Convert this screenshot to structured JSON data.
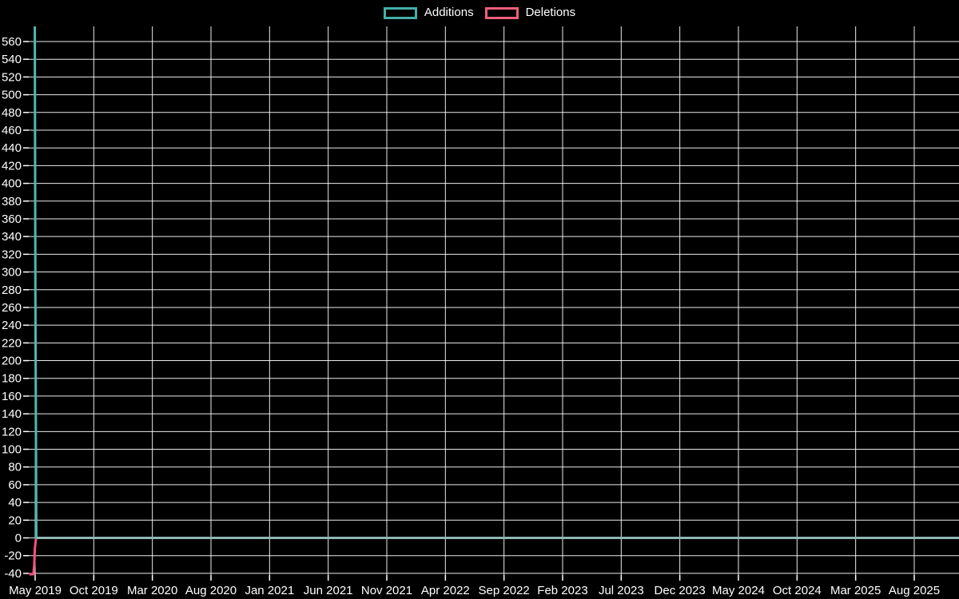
{
  "page": {
    "background_color": "#000000",
    "text_color": "#ffffff",
    "gridline_color": "#ffffff"
  },
  "legend": {
    "items": [
      {
        "label": "Additions",
        "color": "#45AFA7"
      },
      {
        "label": "Deletions",
        "color": "#F25E7C"
      }
    ]
  },
  "chart_data": {
    "type": "line",
    "title": "",
    "xlabel": "",
    "ylabel": "",
    "grid": true,
    "legend_position": "top-center",
    "x_tick_labels": [
      "May 2019",
      "Oct 2019",
      "Mar 2020",
      "Aug 2020",
      "Jan 2021",
      "Jun 2021",
      "Nov 2021",
      "Apr 2022",
      "Sep 2022",
      "Feb 2023",
      "Jul 2023",
      "Dec 2023",
      "May 2024",
      "Oct 2024",
      "Mar 2025",
      "Aug 2025"
    ],
    "x_tick_interval_months": 5,
    "y_tick_labels": [
      "560",
      "540",
      "520",
      "500",
      "480",
      "460",
      "440",
      "420",
      "400",
      "380",
      "360",
      "340",
      "320",
      "300",
      "280",
      "260",
      "240",
      "220",
      "200",
      "180",
      "160",
      "140",
      "120",
      "100",
      "80",
      "60",
      "40",
      "20",
      "0",
      "-20",
      "-40"
    ],
    "ylim": [
      -42,
      577
    ],
    "series": [
      {
        "name": "Additions",
        "color": "#4FB8B0",
        "zero_run_color": "#8FB7B4",
        "summary": "Single spike of ~575 additions at May 2019, ~270 the following week, then 0 for the rest of the timeline.",
        "points": [
          {
            "t_months": -0.03,
            "value": 577
          },
          {
            "t_months": 0.02,
            "value": 270
          },
          {
            "t_months": 0.1,
            "value": 0
          },
          {
            "t_months": 78.8,
            "value": 0
          }
        ]
      },
      {
        "name": "Deletions",
        "color": "#F6517F",
        "summary": "Spike of ~-40 deletions just before/at May 2019 stepping up (-40, -30, -10) to 0, then 0 for the rest of the timeline.",
        "points": [
          {
            "t_months": -0.5,
            "value": -41
          },
          {
            "t_months": -0.15,
            "value": -41
          },
          {
            "t_months": -0.08,
            "value": -30
          },
          {
            "t_months": -0.02,
            "value": -11
          },
          {
            "t_months": 0.08,
            "value": 0
          },
          {
            "t_months": 78.8,
            "value": 0
          }
        ]
      }
    ]
  }
}
